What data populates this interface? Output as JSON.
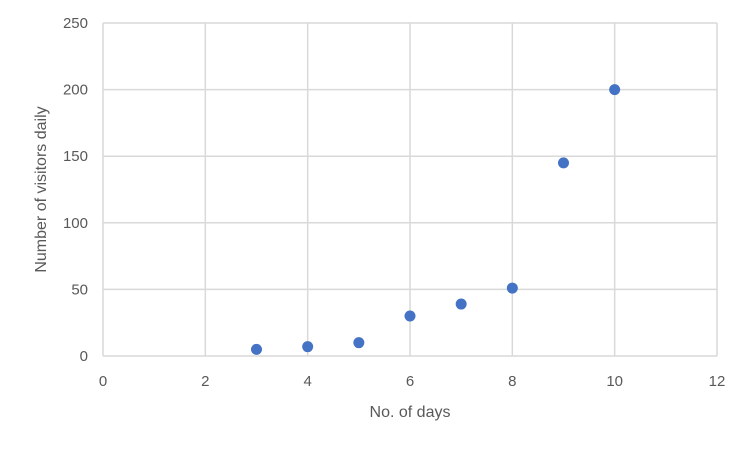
{
  "chart_data": {
    "type": "scatter",
    "title": "",
    "xlabel": "No. of days",
    "ylabel": "Number of visitors daily",
    "xlim": [
      0,
      12
    ],
    "ylim": [
      0,
      250
    ],
    "x_ticks": [
      0,
      2,
      4,
      6,
      8,
      10,
      12
    ],
    "y_ticks": [
      0,
      50,
      100,
      150,
      200,
      250
    ],
    "grid": true,
    "legend": "none",
    "marker_color": "#4472c4",
    "series": [
      {
        "x": [
          3,
          4,
          5,
          6,
          7,
          8,
          9,
          10
        ],
        "y": [
          5,
          7,
          10,
          30,
          39,
          51,
          145,
          200
        ]
      }
    ]
  }
}
